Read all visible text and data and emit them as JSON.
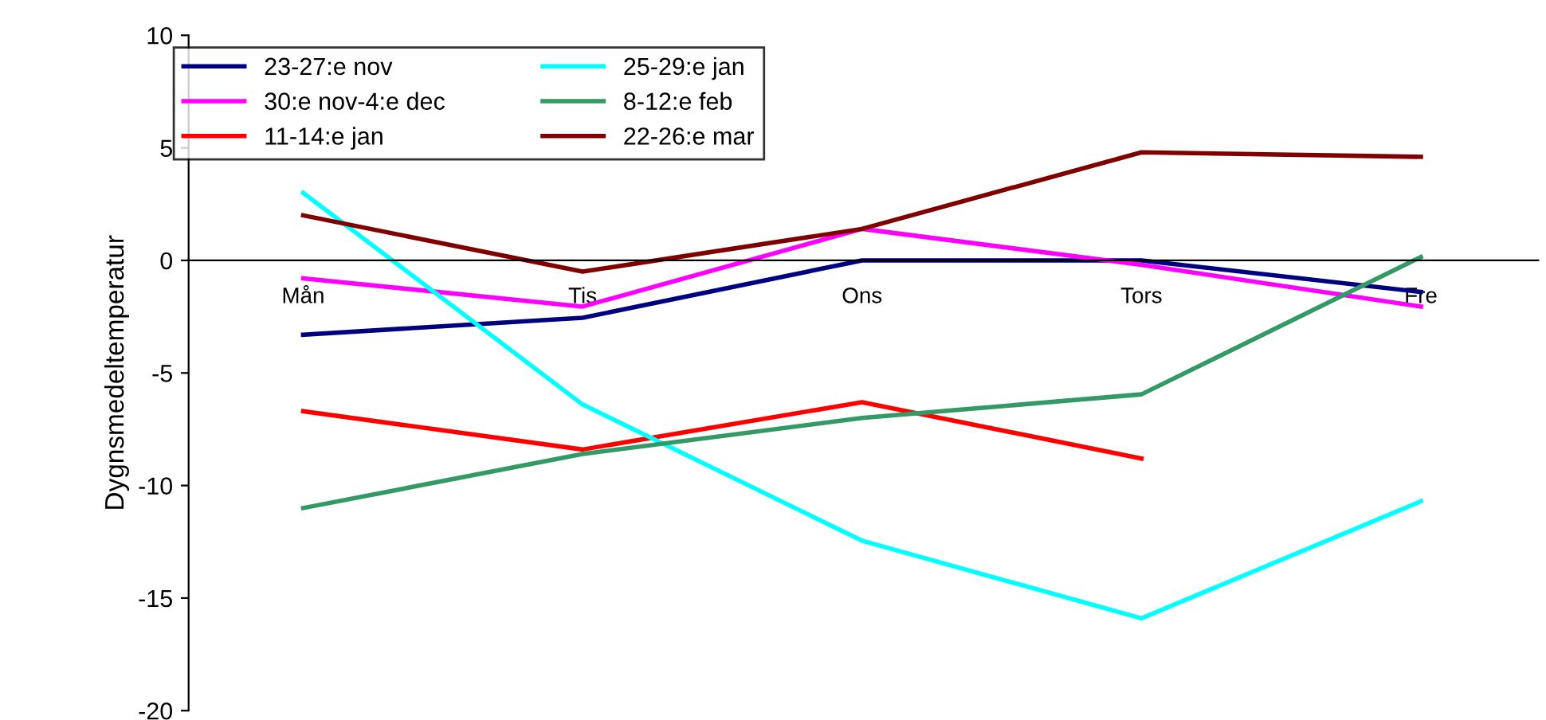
{
  "chart_data": {
    "type": "line",
    "ylabel": "Dygnsmedeltemperatur",
    "categories": [
      "Mån",
      "Tis",
      "Ons",
      "Tors",
      "Fre"
    ],
    "ylim": [
      -20,
      10
    ],
    "yticks": [
      -20,
      -15,
      -10,
      -5,
      0,
      5,
      10
    ],
    "grid": false,
    "legend": "top left",
    "marker": "none",
    "line_style": "solid",
    "series": [
      {
        "name": "23-27:e nov",
        "color": "#000080",
        "values": [
          -3.3,
          -2.55,
          0,
          0,
          -1.4
        ]
      },
      {
        "name": "30:e nov-4:e dec",
        "color": "#ff00ff",
        "values": [
          -0.8,
          -2.05,
          1.4,
          -0.2,
          -2.05
        ]
      },
      {
        "name": "11-14:e jan",
        "color": "#ff0000",
        "values": [
          -6.7,
          -8.4,
          -6.3,
          -8.8,
          null
        ]
      },
      {
        "name": "25-29:e jan",
        "color": "#00ffff",
        "values": [
          3.0,
          -6.4,
          -12.45,
          -15.9,
          -10.7
        ]
      },
      {
        "name": "8-12:e feb",
        "color": "#339966",
        "values": [
          -11.0,
          -8.6,
          -7.0,
          -5.95,
          0.15
        ]
      },
      {
        "name": "22-26:e mar",
        "color": "#800000",
        "values": [
          2.0,
          -0.5,
          1.4,
          4.8,
          4.6
        ]
      }
    ]
  }
}
